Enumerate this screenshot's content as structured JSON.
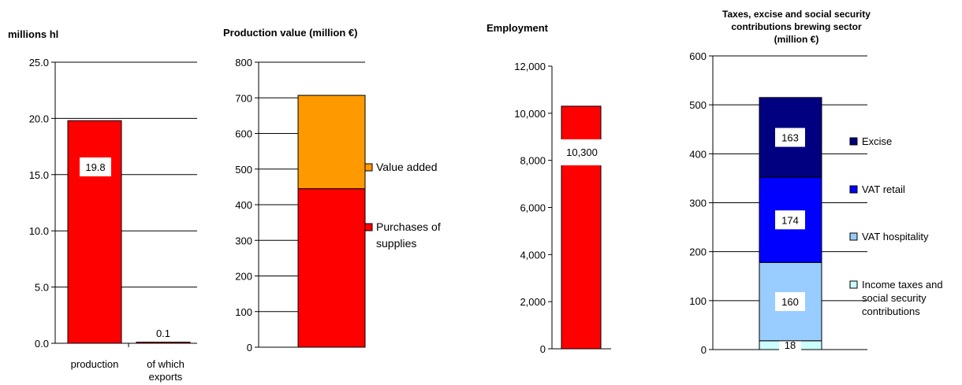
{
  "chart_data": [
    {
      "type": "bar",
      "title": "millions hl",
      "categories": [
        "production",
        "of which exports"
      ],
      "values": [
        19.8,
        0.1
      ],
      "data_labels": [
        "19.8",
        "0.1"
      ],
      "ylim": [
        0,
        25
      ],
      "yticks": [
        "0.0",
        "5.0",
        "10.0",
        "15.0",
        "20.0",
        "25.0"
      ],
      "grid": true,
      "colors": [
        "#ff0000",
        "#ff0000"
      ]
    },
    {
      "type": "bar",
      "stacked": true,
      "title": "Production value (million €)",
      "ylim": [
        0,
        800
      ],
      "yticks": [
        "0",
        "100",
        "200",
        "300",
        "400",
        "500",
        "600",
        "700",
        "800"
      ],
      "grid": true,
      "legend_position": "right",
      "series": [
        {
          "name": "Purchases of supplies",
          "values": [
            445
          ],
          "color": "#ff0000"
        },
        {
          "name": "Value added",
          "values": [
            262
          ],
          "color": "#ff9900"
        }
      ]
    },
    {
      "type": "bar",
      "title": "Employment",
      "values": [
        10300
      ],
      "data_labels": [
        "10,300"
      ],
      "ylim": [
        0,
        12000
      ],
      "yticks": [
        "0",
        "2,000",
        "4,000",
        "6,000",
        "8,000",
        "10,000",
        "12,000"
      ],
      "grid": false,
      "colors": [
        "#ff0000"
      ]
    },
    {
      "type": "bar",
      "stacked": true,
      "title": "Taxes, excise and social security contributions brewing sector (million €)",
      "ylim": [
        0,
        600
      ],
      "yticks": [
        "0",
        "100",
        "200",
        "300",
        "400",
        "500",
        "600"
      ],
      "grid": true,
      "legend_position": "right",
      "series": [
        {
          "name": "Income taxes and social security contributions",
          "values": [
            18
          ],
          "label": "18",
          "color": "#ccffff"
        },
        {
          "name": "VAT hospitality",
          "values": [
            160
          ],
          "label": "160",
          "color": "#99ccff"
        },
        {
          "name": "VAT retail",
          "values": [
            174
          ],
          "label": "174",
          "color": "#0000ff"
        },
        {
          "name": "Excise",
          "values": [
            163
          ],
          "label": "163",
          "color": "#000080"
        }
      ]
    }
  ]
}
